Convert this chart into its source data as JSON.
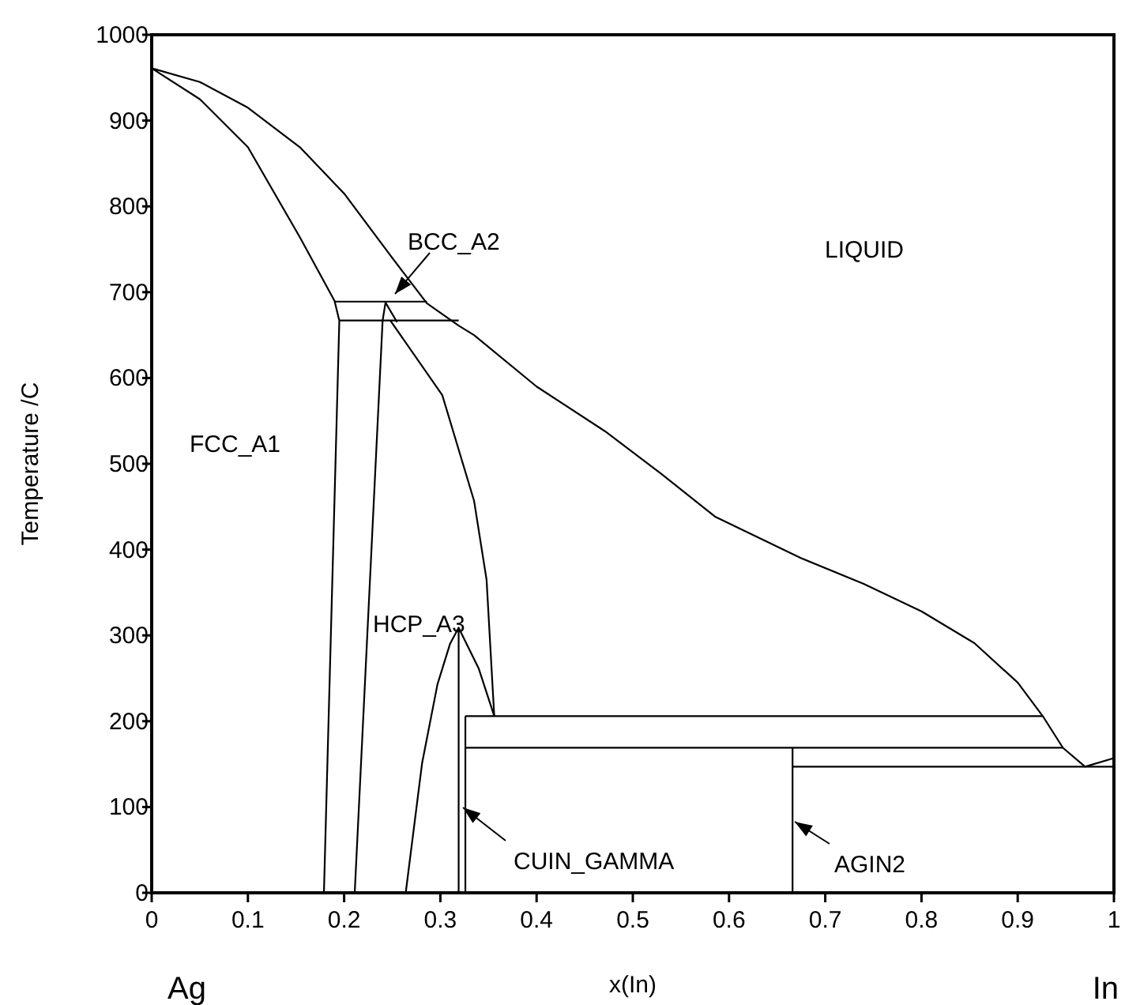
{
  "chart_data": {
    "type": "line",
    "xlabel": "x(In)",
    "ylabel": "Temperature /C",
    "xlim": [
      0,
      1
    ],
    "ylim": [
      0,
      1000
    ],
    "xticks": [
      0,
      0.1,
      0.2,
      0.3,
      0.4,
      0.5,
      0.6,
      0.7,
      0.8,
      0.9,
      1
    ],
    "yticks": [
      0,
      100,
      200,
      300,
      400,
      500,
      600,
      700,
      800,
      900,
      1000
    ],
    "grid": false,
    "series": [
      {
        "color": "#000000",
        "x": [
          0.179,
          0.195,
          0.19,
          0.154,
          0.1,
          0.05,
          0,
          0.05,
          0.1,
          0.154,
          0.2,
          0.25,
          0.286,
          0.319,
          0.335,
          0.4,
          0.471,
          0.53,
          0.586,
          0.675,
          0.74,
          0.8,
          0.855,
          0.9,
          0.926,
          0.947,
          0.97,
          1.0
        ],
        "values": [
          0,
          667,
          690,
          764,
          869,
          925,
          961,
          945,
          915,
          869,
          815,
          740,
          687,
          661,
          650,
          590,
          538,
          488,
          438,
          390,
          360,
          328,
          291,
          245,
          206,
          169,
          147,
          157
        ]
      },
      {
        "color": "#000000",
        "x": [
          0.19,
          0.286
        ],
        "values": [
          689,
          689
        ]
      },
      {
        "color": "#000000",
        "x": [
          0.195,
          0.319
        ],
        "values": [
          667,
          667
        ]
      },
      {
        "color": "#000000",
        "x": [
          0.211,
          0.24,
          0.243,
          0.255
        ],
        "values": [
          0,
          667,
          688,
          665
        ]
      },
      {
        "color": "#000000",
        "x": [
          0.248,
          0.302,
          0.335,
          0.348,
          0.356
        ],
        "values": [
          667,
          580,
          457,
          365,
          206
        ]
      },
      {
        "color": "#000000",
        "x": [
          0.264,
          0.281,
          0.297,
          0.31,
          0.319,
          0.34,
          0.356
        ],
        "values": [
          0,
          151,
          243,
          290,
          309,
          261,
          206
        ]
      },
      {
        "color": "#000000",
        "x": [
          0.319,
          0.319
        ],
        "values": [
          309,
          0
        ]
      },
      {
        "color": "#000000",
        "x": [
          0.326,
          0.326
        ],
        "values": [
          206,
          0
        ]
      },
      {
        "color": "#000000",
        "x": [
          0.326,
          0.926
        ],
        "values": [
          206,
          206
        ]
      },
      {
        "color": "#000000",
        "x": [
          0.326,
          0.947
        ],
        "values": [
          169,
          169
        ]
      },
      {
        "color": "#000000",
        "x": [
          0.666,
          1.0
        ],
        "values": [
          147,
          147
        ]
      },
      {
        "color": "#000000",
        "x": [
          0.666,
          0.666
        ],
        "values": [
          169,
          0
        ]
      }
    ],
    "annotations": [
      "LIQUID",
      "BCC_A2",
      "FCC_A1",
      "HCP_A3",
      "CUIN_GAMMA",
      "AGIN2",
      "Ag",
      "In"
    ]
  }
}
